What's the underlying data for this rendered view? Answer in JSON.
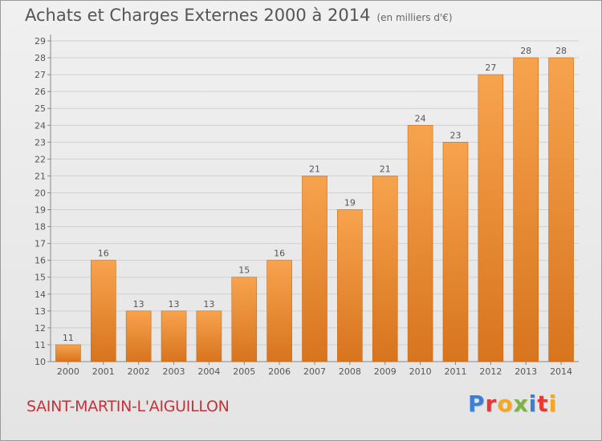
{
  "header": {
    "title": "Achats et Charges Externes 2000 à 2014",
    "units": "(en milliers d'€)"
  },
  "footer": {
    "commune": "SAINT-MARTIN-L'AIGUILLON",
    "logo": "Proxiti",
    "logo_colors": [
      "#3a7fd5",
      "#e53935",
      "#f5a623",
      "#7cb342",
      "#3a7fd5",
      "#e53935",
      "#f5a623"
    ]
  },
  "chart_data": {
    "type": "bar",
    "title": "Achats et Charges Externes 2000 à 2014",
    "xlabel": "",
    "ylabel": "",
    "categories": [
      "2000",
      "2001",
      "2002",
      "2003",
      "2004",
      "2005",
      "2006",
      "2007",
      "2008",
      "2009",
      "2010",
      "2011",
      "2012",
      "2013",
      "2014"
    ],
    "values": [
      11,
      16,
      13,
      13,
      13,
      15,
      16,
      21,
      19,
      21,
      24,
      23,
      27,
      28,
      28
    ],
    "ylim": [
      10,
      29
    ],
    "yticks": [
      10,
      11,
      12,
      13,
      14,
      15,
      16,
      17,
      18,
      19,
      20,
      21,
      22,
      23,
      24,
      25,
      26,
      27,
      28,
      29
    ],
    "grid": true,
    "bar_color_top": "#f7a34e",
    "bar_color_bottom": "#d8741e"
  }
}
